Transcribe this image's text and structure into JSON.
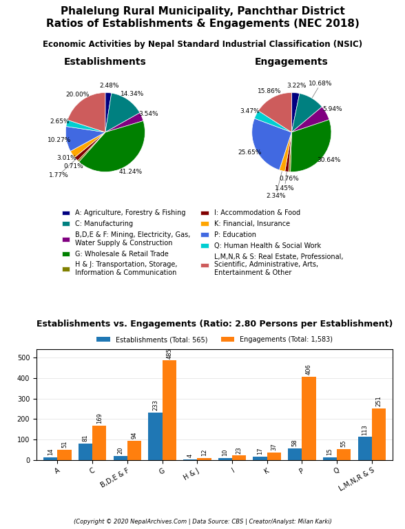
{
  "title": "Phalelung Rural Municipality, Panchthar District\nRatios of Establishments & Engagements (NEC 2018)",
  "subtitle": "Economic Activities by Nepal Standard Industrial Classification (NSIC)",
  "footer": "(Copyright © 2020 NepalArchives.Com | Data Source: CBS | Creator/Analyst: Milan Karki)",
  "chart_data": [
    {
      "type": "pie",
      "title": "Establishments",
      "categories": [
        "A: Agriculture, Forestry & Fishing",
        "C: Manufacturing",
        "B,D,E & F: Mining, Electricity, Gas,\nWater Supply & Construction",
        "G: Wholesale & Retail Trade",
        "H & J: Transportation, Storage,\nInformation & Communication",
        "I: Accommodation & Food",
        "K: Financial, Insurance",
        "P: Education",
        "Q: Human Health & Social Work",
        "L,M,N,R & S: Real Estate, Professional,\nScientific, Administrative, Arts,\nEntertainment & Other"
      ],
      "values": [
        2.48,
        14.34,
        3.54,
        41.24,
        0.71,
        1.77,
        3.01,
        10.27,
        2.65,
        20.0
      ],
      "value_labels": [
        "2.48%",
        "14.34%",
        "3.54%",
        "41.24%",
        "0.71%",
        "1.77%",
        "3.01%",
        "10.27%",
        "2.65%",
        "20.00%"
      ],
      "colors": [
        "#000080",
        "#008080",
        "#800080",
        "#008000",
        "#808000",
        "#800000",
        "#FFA500",
        "#4169E1",
        "#00CED1",
        "#CD5C5C"
      ],
      "data_labels": true,
      "legend": "upper center"
    },
    {
      "type": "pie",
      "title": "Engagements",
      "categories": [
        "A: Agriculture, Forestry & Fishing",
        "C: Manufacturing",
        "B,D,E & F: Mining, Electricity, Gas,\nWater Supply & Construction",
        "G: Wholesale & Retail Trade",
        "H & J: Transportation, Storage,\nInformation & Communication",
        "I: Accommodation & Food",
        "K: Financial, Insurance",
        "P: Education",
        "Q: Human Health & Social Work",
        "L,M,N,R & S: Real Estate, Professional,\nScientific, Administrative, Arts,\nEntertainment & Other"
      ],
      "values": [
        3.22,
        10.68,
        5.94,
        30.64,
        0.76,
        1.45,
        2.34,
        25.65,
        3.47,
        15.86
      ],
      "value_labels": [
        "3.22%",
        "10.68%",
        "5.94%",
        "30.64%",
        "0.76%",
        "1.45%",
        "2.34%",
        "25.65%",
        "3.47%",
        "15.86%"
      ],
      "colors": [
        "#000080",
        "#008080",
        "#800080",
        "#008000",
        "#808000",
        "#800000",
        "#FFA500",
        "#4169E1",
        "#00CED1",
        "#CD5C5C"
      ],
      "data_labels": true
    },
    {
      "type": "bar",
      "title": "Establishments vs. Engagements (Ratio: 2.80 Persons per Establishment)",
      "categories": [
        "A",
        "C",
        "B,D,E & F",
        "G",
        "H & J",
        "I",
        "K",
        "P",
        "Q",
        "L,M,N,R & S"
      ],
      "series": [
        {
          "name": "Establishments (Total: 565)",
          "values": [
            14,
            81,
            20,
            233,
            4,
            10,
            17,
            58,
            15,
            113
          ]
        },
        {
          "name": "Engagements (Total: 1,583)",
          "values": [
            51,
            169,
            94,
            485,
            12,
            23,
            37,
            406,
            55,
            251
          ]
        }
      ],
      "ylim": [
        0,
        540
      ],
      "yticks": [
        0,
        100,
        200,
        300,
        400,
        500
      ],
      "grid": true,
      "data_labels": true,
      "legend": "lower center"
    }
  ]
}
